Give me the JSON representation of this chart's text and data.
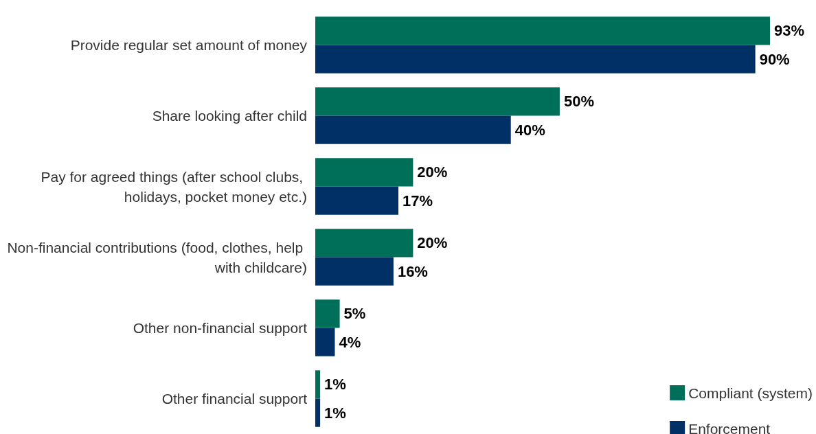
{
  "chart_data": {
    "type": "bar",
    "orientation": "horizontal",
    "categories": [
      "Provide regular set amount of money",
      "Share looking after child",
      "Pay for agreed things (after school clubs, holidays, pocket money etc.)",
      "Non-financial contributions (food, clothes, help with childcare)",
      "Other non-financial support",
      "Other financial support"
    ],
    "series": [
      {
        "name": "Compliant (system)",
        "color": "#006f5a",
        "values": [
          93,
          50,
          20,
          20,
          5,
          1
        ],
        "value_labels": [
          "93%",
          "50%",
          "20%",
          "20%",
          "5%",
          "1%"
        ]
      },
      {
        "name": "Enforcement",
        "color": "#003066",
        "values": [
          90,
          40,
          17,
          16,
          4,
          1
        ],
        "value_labels": [
          "90%",
          "40%",
          "17%",
          "16%",
          "4%",
          "1%"
        ]
      }
    ],
    "legend": "bottom right",
    "grid": false
  }
}
